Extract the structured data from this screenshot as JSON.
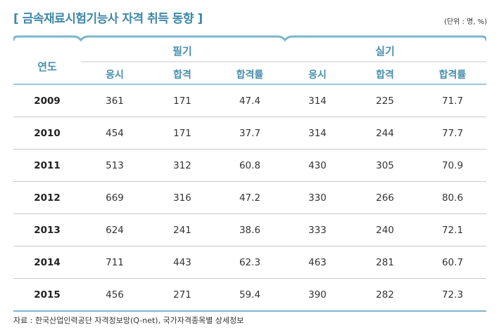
{
  "title": "[ 금속재료시험기능사 자격 취득 동향 ]",
  "unit": "(단위 : 명, %)",
  "headers": {
    "year": "연도",
    "written": "필기",
    "practical": "실기",
    "sub": [
      "응시",
      "합격",
      "합격률",
      "응시",
      "합격",
      "합격률"
    ]
  },
  "rows": [
    {
      "year": "2009",
      "cells": [
        "361",
        "171",
        "47.4",
        "314",
        "225",
        "71.7"
      ]
    },
    {
      "year": "2010",
      "cells": [
        "454",
        "171",
        "37.7",
        "314",
        "244",
        "77.7"
      ]
    },
    {
      "year": "2011",
      "cells": [
        "513",
        "312",
        "60.8",
        "430",
        "305",
        "70.9"
      ]
    },
    {
      "year": "2012",
      "cells": [
        "669",
        "316",
        "47.2",
        "330",
        "266",
        "80.6"
      ]
    },
    {
      "year": "2013",
      "cells": [
        "624",
        "241",
        "38.6",
        "333",
        "240",
        "72.1"
      ]
    },
    {
      "year": "2014",
      "cells": [
        "711",
        "443",
        "62.3",
        "463",
        "281",
        "60.7"
      ]
    },
    {
      "year": "2015",
      "cells": [
        "456",
        "271",
        "59.4",
        "390",
        "282",
        "72.3"
      ]
    }
  ],
  "source": "자료 : 한국산업인력공단 자격정보망(Q-net), 국가자격종목별 상세정보"
}
